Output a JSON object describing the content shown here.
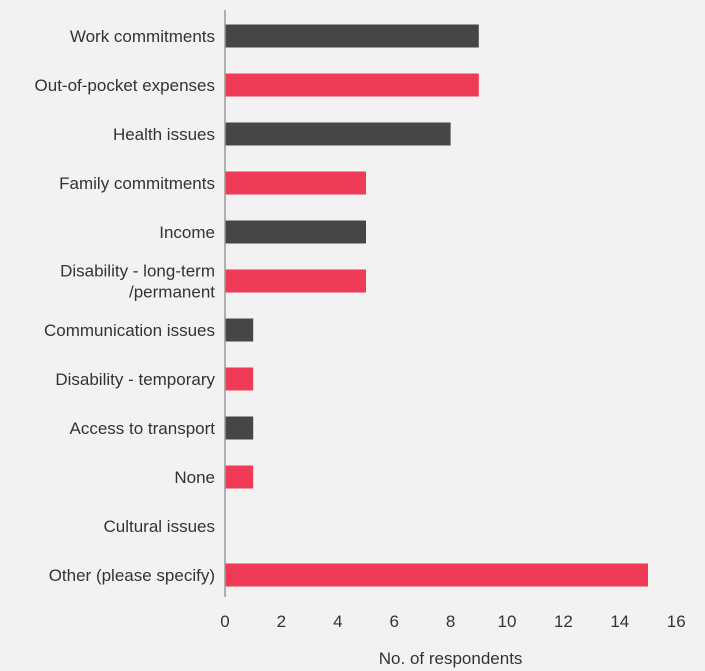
{
  "chart_data": {
    "type": "bar",
    "orientation": "horizontal",
    "categories": [
      [
        "Work commitments"
      ],
      [
        "Out-of-pocket expenses"
      ],
      [
        "Health issues"
      ],
      [
        "Family commitments"
      ],
      [
        "Income"
      ],
      [
        "Disability - long-term",
        "/permanent"
      ],
      [
        "Communication issues"
      ],
      [
        "Disability - temporary"
      ],
      [
        "Access to transport"
      ],
      [
        "None"
      ],
      [
        "Cultural issues"
      ],
      [
        "Other (please specify)"
      ]
    ],
    "values": [
      9,
      9,
      8,
      5,
      5,
      5,
      1,
      1,
      1,
      1,
      0,
      15
    ],
    "bar_colors": [
      "#464646",
      "#ef3b55",
      "#464646",
      "#ef3b55",
      "#464646",
      "#ef3b55",
      "#464646",
      "#ef3b55",
      "#464646",
      "#ef3b55",
      "#464646",
      "#ef3b55"
    ],
    "xlabel": "No. of respondents",
    "ylabel": "",
    "title": "",
    "xlim": [
      0,
      16
    ],
    "xticks": [
      0,
      2,
      4,
      6,
      8,
      10,
      12,
      14,
      16
    ],
    "grid": false,
    "legend": "none",
    "colors": {
      "background": "#f2f2f2",
      "axis": "#999999",
      "text": "#333333"
    }
  }
}
